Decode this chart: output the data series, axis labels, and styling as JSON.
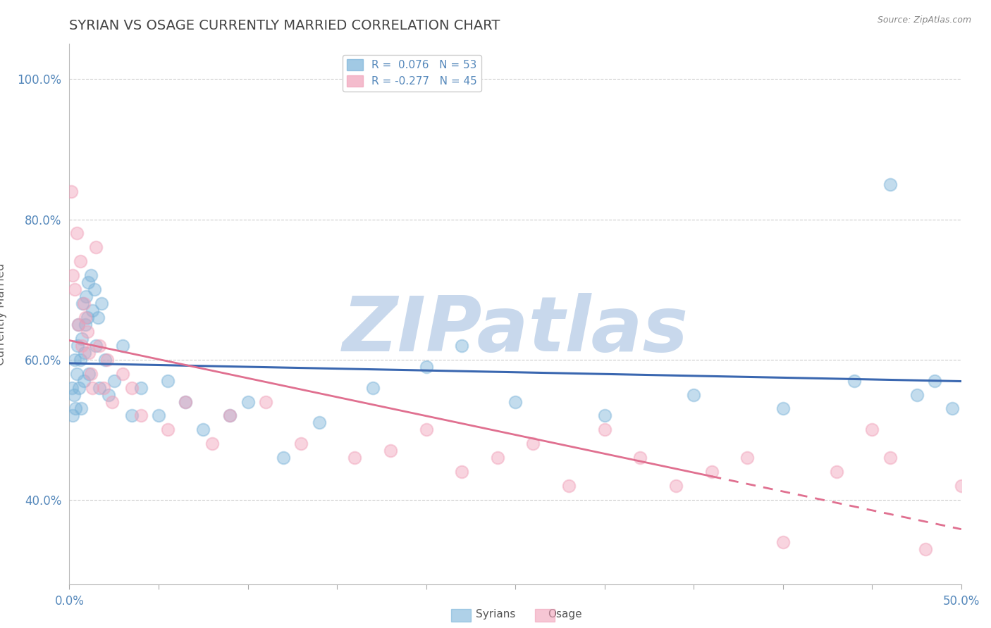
{
  "title": "SYRIAN VS OSAGE CURRENTLY MARRIED CORRELATION CHART",
  "source": "Source: ZipAtlas.com",
  "ylabel": "Currently Married",
  "xlim": [
    0.0,
    50.0
  ],
  "ylim": [
    28.0,
    105.0
  ],
  "yticks": [
    40.0,
    60.0,
    80.0,
    100.0
  ],
  "ytick_labels": [
    "40.0%",
    "60.0%",
    "80.0%",
    "100.0%"
  ],
  "xticks": [
    0.0,
    5.0,
    10.0,
    15.0,
    20.0,
    25.0,
    30.0,
    35.0,
    40.0,
    45.0,
    50.0
  ],
  "legend_line1": "R =  0.076   N = 53",
  "legend_line2": "R = -0.277   N = 45",
  "syrians_x": [
    0.15,
    0.2,
    0.25,
    0.3,
    0.35,
    0.4,
    0.45,
    0.5,
    0.55,
    0.6,
    0.65,
    0.7,
    0.75,
    0.8,
    0.85,
    0.9,
    0.95,
    1.0,
    1.05,
    1.1,
    1.2,
    1.3,
    1.4,
    1.5,
    1.6,
    1.7,
    1.8,
    2.0,
    2.2,
    2.5,
    3.0,
    3.5,
    4.0,
    5.0,
    5.5,
    6.5,
    7.5,
    9.0,
    10.0,
    12.0,
    14.0,
    17.0,
    20.0,
    22.0,
    25.0,
    30.0,
    35.0,
    40.0,
    44.0,
    46.0,
    47.5,
    48.5,
    49.5
  ],
  "syrians_y": [
    56.0,
    52.0,
    55.0,
    60.0,
    53.0,
    58.0,
    62.0,
    65.0,
    56.0,
    60.0,
    53.0,
    63.0,
    68.0,
    57.0,
    61.0,
    65.0,
    69.0,
    66.0,
    71.0,
    58.0,
    72.0,
    67.0,
    70.0,
    62.0,
    66.0,
    56.0,
    68.0,
    60.0,
    55.0,
    57.0,
    62.0,
    52.0,
    56.0,
    52.0,
    57.0,
    54.0,
    50.0,
    52.0,
    54.0,
    46.0,
    51.0,
    56.0,
    59.0,
    62.0,
    54.0,
    52.0,
    55.0,
    53.0,
    57.0,
    85.0,
    55.0,
    57.0,
    53.0
  ],
  "osage_x": [
    0.1,
    0.2,
    0.3,
    0.4,
    0.5,
    0.6,
    0.7,
    0.8,
    0.9,
    1.0,
    1.1,
    1.2,
    1.3,
    1.5,
    1.7,
    1.9,
    2.1,
    2.4,
    3.0,
    3.5,
    4.0,
    5.5,
    6.5,
    8.0,
    9.0,
    11.0,
    13.0,
    16.0,
    18.0,
    20.0,
    22.0,
    24.0,
    26.0,
    28.0,
    30.0,
    32.0,
    34.0,
    36.0,
    38.0,
    40.0,
    43.0,
    45.0,
    46.0,
    48.0,
    50.0
  ],
  "osage_y": [
    84.0,
    72.0,
    70.0,
    78.0,
    65.0,
    74.0,
    62.0,
    68.0,
    66.0,
    64.0,
    61.0,
    58.0,
    56.0,
    76.0,
    62.0,
    56.0,
    60.0,
    54.0,
    58.0,
    56.0,
    52.0,
    50.0,
    54.0,
    48.0,
    52.0,
    54.0,
    48.0,
    46.0,
    47.0,
    50.0,
    44.0,
    46.0,
    48.0,
    42.0,
    50.0,
    46.0,
    42.0,
    44.0,
    46.0,
    34.0,
    44.0,
    50.0,
    46.0,
    33.0,
    42.0
  ],
  "blue_color": "#7ab3d9",
  "pink_color": "#f0a0b8",
  "blue_line_color": "#3a67b0",
  "pink_line_color": "#e07090",
  "background_color": "#ffffff",
  "grid_color": "#cccccc",
  "title_color": "#444444",
  "axis_label_color": "#5588bb",
  "watermark_text": "ZIPatlas",
  "watermark_color": "#c8d8ec",
  "osage_dash_split": 36.0
}
